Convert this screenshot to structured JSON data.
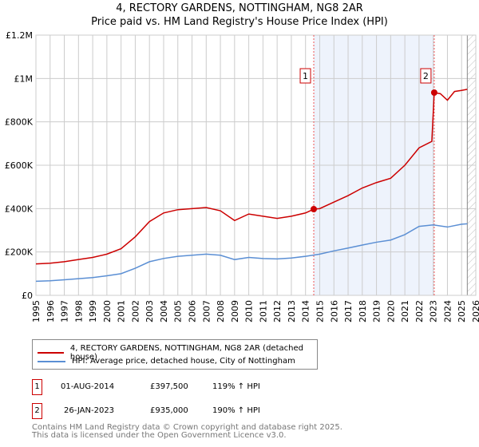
{
  "chart_data": {
    "type": "line",
    "title": "4, RECTORY GARDENS, NOTTINGHAM, NG8 2AR",
    "subtitle": "Price paid vs. HM Land Registry's House Price Index (HPI)",
    "xlim": [
      1995,
      2026
    ],
    "ylim": [
      0,
      1200000
    ],
    "x_ticks": [
      "1995",
      "1996",
      "1997",
      "1998",
      "1999",
      "2000",
      "2001",
      "2002",
      "2003",
      "2004",
      "2005",
      "2006",
      "2007",
      "2008",
      "2009",
      "2010",
      "2011",
      "2012",
      "2013",
      "2014",
      "2015",
      "2016",
      "2017",
      "2018",
      "2019",
      "2020",
      "2021",
      "2022",
      "2023",
      "2024",
      "2025",
      "2026"
    ],
    "y_ticks": [
      {
        "v": 0,
        "l": "£0"
      },
      {
        "v": 200000,
        "l": "£200K"
      },
      {
        "v": 400000,
        "l": "£400K"
      },
      {
        "v": 600000,
        "l": "£600K"
      },
      {
        "v": 800000,
        "l": "£800K"
      },
      {
        "v": 1000000,
        "l": "£1M"
      },
      {
        "v": 1200000,
        "l": "£1.2M"
      }
    ],
    "grid": true,
    "shaded_period": [
      2014.58,
      2023.07
    ],
    "future_hatch_from": 2025.4,
    "series": [
      {
        "name": "4, RECTORY GARDENS, NOTTINGHAM, NG8 2AR (detached house)",
        "color": "#cc0000",
        "x": [
          1995,
          1996,
          1997,
          1998,
          1999,
          2000,
          2001,
          2002,
          2003,
          2004,
          2005,
          2006,
          2007,
          2008,
          2009,
          2010,
          2011,
          2012,
          2013,
          2014,
          2014.58,
          2015,
          2016,
          2017,
          2018,
          2019,
          2020,
          2021,
          2022,
          2022.9,
          2023.07,
          2023.5,
          2024,
          2024.5,
          2025,
          2025.4
        ],
        "values": [
          145000,
          148000,
          155000,
          165000,
          175000,
          190000,
          215000,
          270000,
          340000,
          380000,
          395000,
          400000,
          405000,
          390000,
          345000,
          375000,
          365000,
          355000,
          365000,
          380000,
          397500,
          400000,
          430000,
          460000,
          495000,
          520000,
          540000,
          600000,
          680000,
          710000,
          935000,
          930000,
          900000,
          940000,
          945000,
          950000
        ]
      },
      {
        "name": "HPI: Average price, detached house, City of Nottingham",
        "color": "#5b8fd4",
        "x": [
          1995,
          1996,
          1997,
          1998,
          1999,
          2000,
          2001,
          2002,
          2003,
          2004,
          2005,
          2006,
          2007,
          2008,
          2009,
          2010,
          2011,
          2012,
          2013,
          2014,
          2015,
          2016,
          2017,
          2018,
          2019,
          2020,
          2021,
          2022,
          2023,
          2024,
          2025,
          2025.4
        ],
        "values": [
          65000,
          67000,
          72000,
          77000,
          82000,
          90000,
          100000,
          125000,
          155000,
          170000,
          180000,
          185000,
          190000,
          185000,
          165000,
          175000,
          170000,
          168000,
          172000,
          180000,
          190000,
          205000,
          218000,
          232000,
          245000,
          255000,
          280000,
          318000,
          325000,
          315000,
          328000,
          330000
        ]
      }
    ],
    "markers": [
      {
        "label": "1",
        "x": 2014.58,
        "value": 397500
      },
      {
        "label": "2",
        "x": 2023.07,
        "value": 935000
      }
    ]
  },
  "legend": {
    "red": "4, RECTORY GARDENS, NOTTINGHAM, NG8 2AR (detached house)",
    "blue": "HPI: Average price, detached house, City of Nottingham"
  },
  "sales": [
    {
      "num": "1",
      "date": "01-AUG-2014",
      "price": "£397,500",
      "hpi": "119% ↑ HPI"
    },
    {
      "num": "2",
      "date": "26-JAN-2023",
      "price": "£935,000",
      "hpi": "190% ↑ HPI"
    }
  ],
  "footer": {
    "line1": "Contains HM Land Registry data © Crown copyright and database right 2025.",
    "line2": "This data is licensed under the Open Government Licence v3.0."
  }
}
